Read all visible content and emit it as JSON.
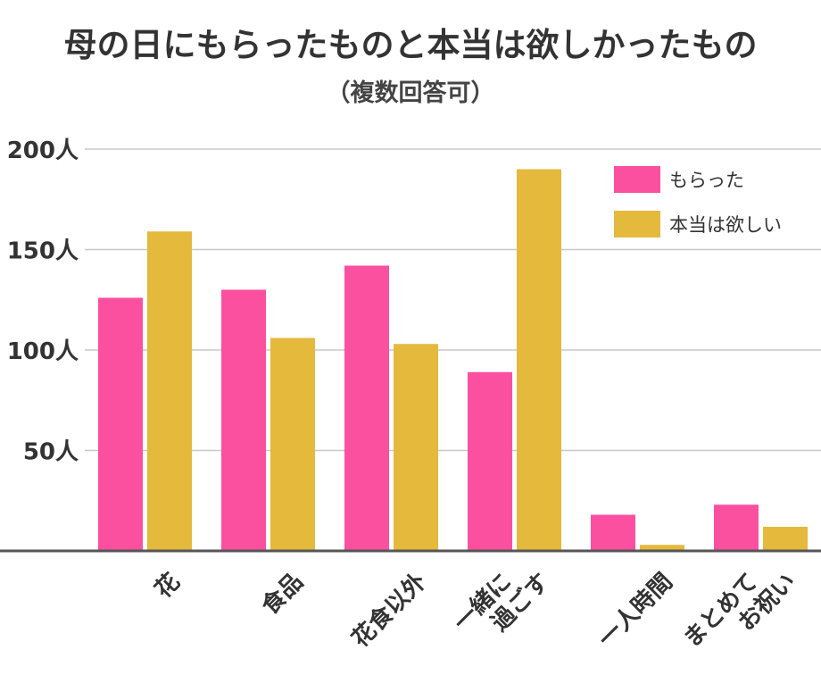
{
  "chart_data": {
    "type": "bar",
    "title": "母の日にもらったものと本当は欲しかったもの",
    "subtitle": "（複数回答可）",
    "categories": [
      "花",
      "食品",
      "花食以外",
      "一緒に\n過ごす",
      "一人時間",
      "まとめて\nお祝い"
    ],
    "series": [
      {
        "name": "もらった",
        "values": [
          126,
          130,
          142,
          89,
          18,
          23
        ],
        "color": "#fb50a0"
      },
      {
        "name": "本当は欲しい",
        "values": [
          159,
          106,
          103,
          190,
          3,
          12
        ],
        "color": "#e4b93c"
      }
    ],
    "ylim": [
      0,
      200
    ],
    "yticks": [
      {
        "value": 50,
        "label": "50人"
      },
      {
        "value": 100,
        "label": "100人"
      },
      {
        "value": 150,
        "label": "150人"
      },
      {
        "value": 200,
        "label": "200人"
      }
    ],
    "grid": true,
    "legend_position": "top-right",
    "gridline_color": "#c8c8c8",
    "axis_color": "#555555"
  }
}
